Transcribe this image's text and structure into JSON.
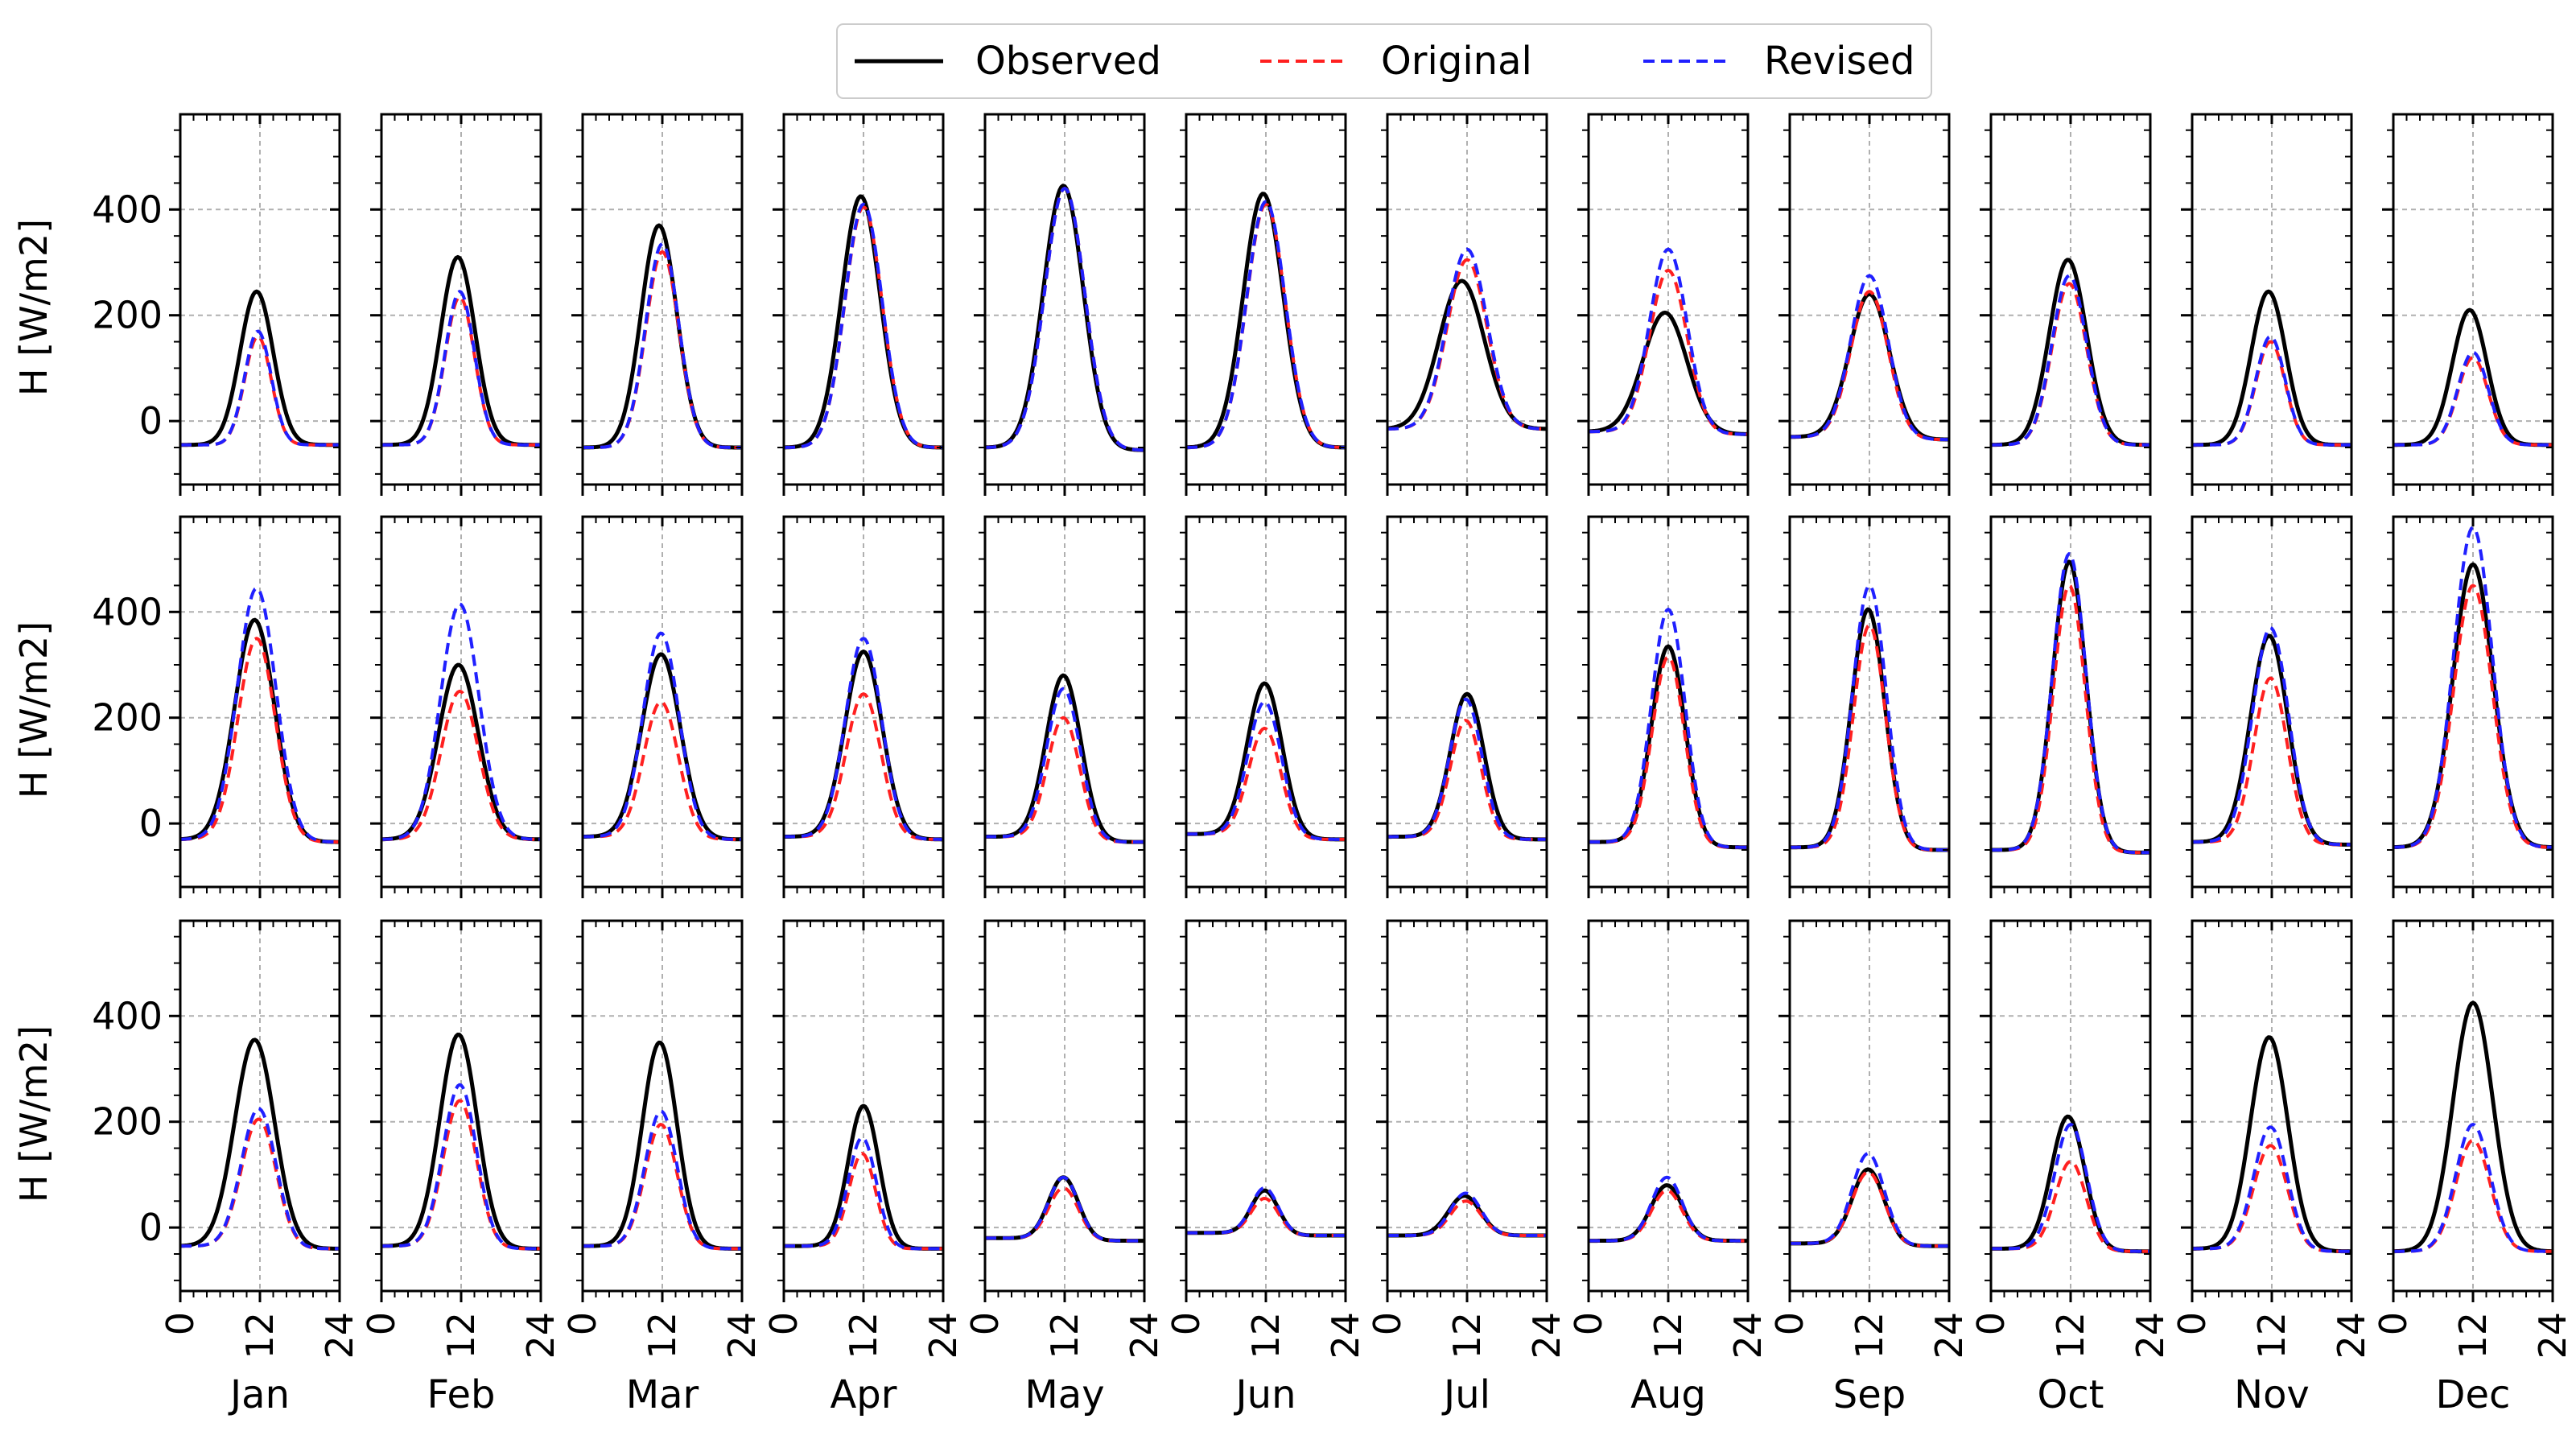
{
  "chart_data": {
    "type": "line",
    "layout": "3 rows x 12 columns of small multiples (hourly diurnal cycle per month)",
    "legend": {
      "placement": "top-center",
      "entries": [
        {
          "name": "Observed",
          "color": "#000000",
          "style": "solid"
        },
        {
          "name": "Original",
          "color": "#ff2020",
          "style": "dashed"
        },
        {
          "name": "Revised",
          "color": "#2020ff",
          "style": "dashed"
        }
      ]
    },
    "ylabel": "H [W/m2]",
    "xlabel_ticks": [
      "0",
      "12",
      "24"
    ],
    "xticks": [
      0,
      12,
      24
    ],
    "xlim": [
      0,
      24
    ],
    "ylim": [
      -120,
      580
    ],
    "yticks": [
      0,
      200,
      400
    ],
    "ytick_labels": [
      "0",
      "200",
      "400"
    ],
    "grid": true,
    "months": [
      "Jan",
      "Feb",
      "Mar",
      "Apr",
      "May",
      "Jun",
      "Jul",
      "Aug",
      "Sep",
      "Oct",
      "Nov",
      "Dec"
    ],
    "series_params_note": "each panel curve: base, peak, width(sigma hours), center hour, post (late-night level)",
    "rows": [
      [
        {
          "obs": [
            -45,
            245,
            2.5,
            11.5,
            -45
          ],
          "orig": [
            -45,
            160,
            2.0,
            11.7,
            -45
          ],
          "rev": [
            -45,
            170,
            2.0,
            11.7,
            -45
          ]
        },
        {
          "obs": [
            -45,
            310,
            2.6,
            11.5,
            -45
          ],
          "orig": [
            -45,
            235,
            2.2,
            11.8,
            -45
          ],
          "rev": [
            -45,
            245,
            2.2,
            11.8,
            -45
          ]
        },
        {
          "obs": [
            -50,
            370,
            2.7,
            11.5,
            -50
          ],
          "orig": [
            -50,
            320,
            2.5,
            12.0,
            -50
          ],
          "rev": [
            -50,
            335,
            2.5,
            12.0,
            -50
          ]
        },
        {
          "obs": [
            -50,
            425,
            2.9,
            11.6,
            -50
          ],
          "orig": [
            -50,
            405,
            2.8,
            12.0,
            -50
          ],
          "rev": [
            -50,
            410,
            2.8,
            12.0,
            -50
          ]
        },
        {
          "obs": [
            -50,
            445,
            3.0,
            11.8,
            -55
          ],
          "orig": [
            -50,
            440,
            3.0,
            12.0,
            -55
          ],
          "rev": [
            -50,
            440,
            3.0,
            12.0,
            -55
          ]
        },
        {
          "obs": [
            -50,
            430,
            3.0,
            11.6,
            -50
          ],
          "orig": [
            -50,
            410,
            2.9,
            12.0,
            -50
          ],
          "rev": [
            -50,
            415,
            2.9,
            12.0,
            -50
          ]
        },
        {
          "obs": [
            -15,
            265,
            3.4,
            11.2,
            -15
          ],
          "orig": [
            -15,
            305,
            3.0,
            12.0,
            -15
          ],
          "rev": [
            -15,
            325,
            3.0,
            12.0,
            -15
          ]
        },
        {
          "obs": [
            -20,
            205,
            3.3,
            11.5,
            -25
          ],
          "orig": [
            -20,
            285,
            2.8,
            12.0,
            -25
          ],
          "rev": [
            -20,
            325,
            2.8,
            12.0,
            -25
          ]
        },
        {
          "obs": [
            -30,
            240,
            3.0,
            12.0,
            -35
          ],
          "orig": [
            -30,
            245,
            2.8,
            12.0,
            -35
          ],
          "rev": [
            -30,
            275,
            2.8,
            12.0,
            -35
          ]
        },
        {
          "obs": [
            -45,
            305,
            2.8,
            11.6,
            -45
          ],
          "orig": [
            -45,
            260,
            2.6,
            11.8,
            -45
          ],
          "rev": [
            -45,
            275,
            2.6,
            11.8,
            -45
          ]
        },
        {
          "obs": [
            -45,
            245,
            2.6,
            11.5,
            -45
          ],
          "orig": [
            -45,
            150,
            2.2,
            11.8,
            -45
          ],
          "rev": [
            -45,
            160,
            2.2,
            11.8,
            -45
          ]
        },
        {
          "obs": [
            -45,
            210,
            2.6,
            11.5,
            -45
          ],
          "orig": [
            -45,
            120,
            2.3,
            12.0,
            -45
          ],
          "rev": [
            -45,
            130,
            2.3,
            12.0,
            -45
          ]
        }
      ],
      [
        {
          "obs": [
            -30,
            385,
            3.0,
            11.2,
            -35
          ],
          "orig": [
            -30,
            350,
            2.8,
            11.5,
            -35
          ],
          "rev": [
            -30,
            445,
            2.9,
            11.5,
            -35
          ]
        },
        {
          "obs": [
            -30,
            300,
            3.0,
            11.6,
            -30
          ],
          "orig": [
            -30,
            250,
            2.8,
            11.8,
            -30
          ],
          "rev": [
            -30,
            415,
            2.9,
            11.8,
            -30
          ]
        },
        {
          "obs": [
            -25,
            320,
            2.9,
            11.8,
            -30
          ],
          "orig": [
            -25,
            230,
            2.6,
            11.8,
            -30
          ],
          "rev": [
            -25,
            360,
            2.7,
            11.8,
            -30
          ]
        },
        {
          "obs": [
            -25,
            325,
            2.8,
            12.0,
            -30
          ],
          "orig": [
            -25,
            245,
            2.6,
            12.0,
            -30
          ],
          "rev": [
            -25,
            350,
            2.7,
            12.0,
            -30
          ]
        },
        {
          "obs": [
            -25,
            280,
            2.6,
            11.8,
            -35
          ],
          "orig": [
            -25,
            200,
            2.4,
            11.8,
            -35
          ],
          "rev": [
            -25,
            255,
            2.5,
            11.8,
            -35
          ]
        },
        {
          "obs": [
            -20,
            265,
            2.6,
            11.8,
            -30
          ],
          "orig": [
            -20,
            180,
            2.4,
            11.8,
            -30
          ],
          "rev": [
            -20,
            230,
            2.5,
            11.8,
            -30
          ]
        },
        {
          "obs": [
            -25,
            245,
            2.5,
            12.0,
            -30
          ],
          "orig": [
            -25,
            195,
            2.3,
            11.8,
            -30
          ],
          "rev": [
            -25,
            235,
            2.4,
            11.8,
            -30
          ]
        },
        {
          "obs": [
            -35,
            335,
            2.5,
            12.0,
            -45
          ],
          "orig": [
            -35,
            315,
            2.4,
            12.0,
            -45
          ],
          "rev": [
            -35,
            405,
            2.5,
            12.0,
            -45
          ]
        },
        {
          "obs": [
            -45,
            405,
            2.5,
            11.8,
            -50
          ],
          "orig": [
            -45,
            375,
            2.4,
            12.0,
            -50
          ],
          "rev": [
            -45,
            450,
            2.5,
            12.0,
            -50
          ]
        },
        {
          "obs": [
            -50,
            495,
            2.5,
            11.8,
            -55
          ],
          "orig": [
            -50,
            450,
            2.4,
            11.8,
            -55
          ],
          "rev": [
            -50,
            510,
            2.5,
            11.8,
            -55
          ]
        },
        {
          "obs": [
            -35,
            355,
            2.8,
            11.6,
            -40
          ],
          "orig": [
            -35,
            275,
            2.5,
            11.8,
            -40
          ],
          "rev": [
            -35,
            370,
            2.7,
            11.8,
            -40
          ]
        },
        {
          "obs": [
            -45,
            490,
            3.0,
            12.0,
            -45
          ],
          "orig": [
            -45,
            450,
            2.9,
            12.0,
            -45
          ],
          "rev": [
            -45,
            560,
            2.9,
            12.0,
            -45
          ]
        }
      ],
      [
        {
          "obs": [
            -35,
            355,
            3.0,
            11.2,
            -40
          ],
          "orig": [
            -35,
            205,
            2.6,
            11.8,
            -40
          ],
          "rev": [
            -35,
            225,
            2.6,
            11.8,
            -40
          ]
        },
        {
          "obs": [
            -35,
            365,
            2.8,
            11.6,
            -40
          ],
          "orig": [
            -35,
            240,
            2.5,
            11.8,
            -40
          ],
          "rev": [
            -35,
            270,
            2.5,
            11.8,
            -40
          ]
        },
        {
          "obs": [
            -35,
            350,
            2.6,
            11.6,
            -40
          ],
          "orig": [
            -35,
            195,
            2.4,
            11.8,
            -40
          ],
          "rev": [
            -35,
            220,
            2.4,
            11.8,
            -40
          ]
        },
        {
          "obs": [
            -35,
            230,
            2.3,
            12.0,
            -40
          ],
          "orig": [
            -35,
            140,
            2.0,
            11.8,
            -40
          ],
          "rev": [
            -35,
            170,
            2.1,
            11.8,
            -40
          ]
        },
        {
          "obs": [
            -20,
            95,
            2.2,
            11.8,
            -25
          ],
          "orig": [
            -20,
            75,
            2.2,
            11.8,
            -25
          ],
          "rev": [
            -20,
            95,
            2.2,
            11.8,
            -25
          ]
        },
        {
          "obs": [
            -10,
            70,
            2.0,
            11.8,
            -15
          ],
          "orig": [
            -10,
            55,
            2.0,
            11.8,
            -15
          ],
          "rev": [
            -10,
            75,
            2.0,
            11.8,
            -15
          ]
        },
        {
          "obs": [
            -15,
            60,
            2.4,
            11.6,
            -15
          ],
          "orig": [
            -15,
            50,
            2.3,
            11.8,
            -15
          ],
          "rev": [
            -15,
            65,
            2.3,
            11.8,
            -15
          ]
        },
        {
          "obs": [
            -25,
            80,
            2.4,
            11.8,
            -25
          ],
          "orig": [
            -25,
            70,
            2.3,
            11.8,
            -25
          ],
          "rev": [
            -25,
            95,
            2.3,
            11.8,
            -25
          ]
        },
        {
          "obs": [
            -30,
            110,
            2.4,
            11.8,
            -35
          ],
          "orig": [
            -30,
            105,
            2.4,
            11.8,
            -35
          ],
          "rev": [
            -30,
            140,
            2.4,
            11.8,
            -35
          ]
        },
        {
          "obs": [
            -40,
            210,
            2.5,
            11.6,
            -45
          ],
          "orig": [
            -40,
            125,
            2.3,
            12.0,
            -45
          ],
          "rev": [
            -40,
            195,
            2.4,
            12.0,
            -45
          ]
        },
        {
          "obs": [
            -40,
            360,
            2.8,
            11.6,
            -45
          ],
          "orig": [
            -40,
            155,
            2.5,
            11.8,
            -45
          ],
          "rev": [
            -40,
            190,
            2.5,
            11.8,
            -45
          ]
        },
        {
          "obs": [
            -45,
            425,
            3.0,
            12.0,
            -45
          ],
          "orig": [
            -45,
            165,
            2.6,
            12.0,
            -45
          ],
          "rev": [
            -45,
            195,
            2.6,
            12.0,
            -45
          ]
        }
      ]
    ]
  }
}
